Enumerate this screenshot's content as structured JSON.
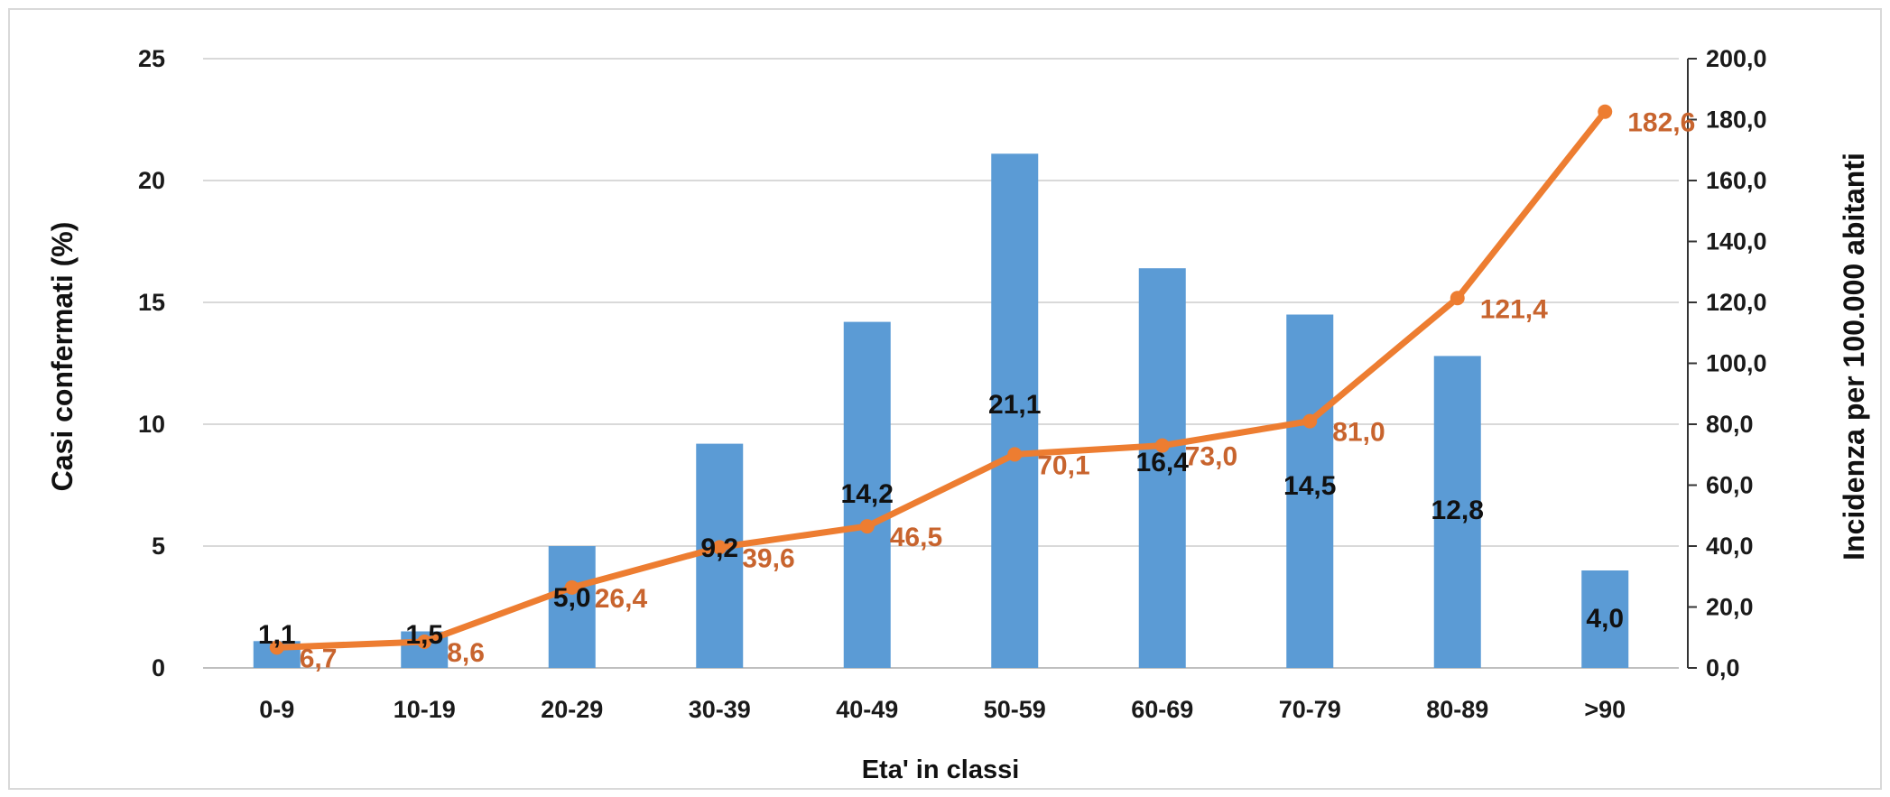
{
  "chart_data": {
    "type": "bar",
    "categories": [
      "0-9",
      "10-19",
      "20-29",
      "30-39",
      "40-49",
      "50-59",
      "60-69",
      "70-79",
      "80-89",
      ">90"
    ],
    "series": [
      {
        "type": "bar",
        "axis": "left",
        "values": [
          1.1,
          1.5,
          5.0,
          9.2,
          14.2,
          21.1,
          16.4,
          14.5,
          12.8,
          4.0
        ],
        "labels": [
          "1,1",
          "1,5",
          "5,0",
          "9,2",
          "14,2",
          "21,1",
          "16,4",
          "14,5",
          "12,8",
          "4,0"
        ],
        "color": "#5b9bd5"
      },
      {
        "type": "line",
        "axis": "right",
        "values": [
          6.7,
          8.6,
          26.4,
          39.6,
          46.5,
          70.1,
          73.0,
          81.0,
          121.4,
          182.6
        ],
        "labels": [
          "6,7",
          "8,6",
          "26,4",
          "39,6",
          "46,5",
          "70,1",
          "73,0",
          "81,0",
          "121,4",
          "182,6"
        ],
        "color": "#ed7d31",
        "label_color": "#c8642e"
      }
    ],
    "xlabel": "Eta' in classi",
    "ylabel": "Casi  confermati  (%)",
    "y2label": "Incidenza per 100.000 abitanti",
    "ylim": [
      0,
      25
    ],
    "y2lim": [
      0,
      200
    ],
    "yticks": [
      "0",
      "5",
      "10",
      "15",
      "20",
      "25"
    ],
    "y2ticks": [
      "0,0",
      "20,0",
      "40,0",
      "60,0",
      "80,0",
      "100,0",
      "120,0",
      "140,0",
      "160,0",
      "180,0",
      "200,0"
    ],
    "grid": true,
    "legend": "none"
  }
}
